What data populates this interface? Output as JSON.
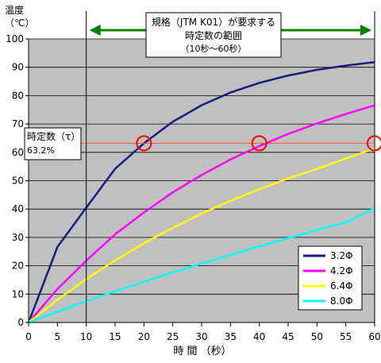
{
  "chart_data": {
    "type": "line",
    "title": "",
    "xlabel": "時 間 （秒）",
    "ylabel": "温度",
    "yunit": "（℃）",
    "xlim": [
      0,
      60
    ],
    "ylim": [
      0,
      100
    ],
    "xticks": [
      0,
      5,
      10,
      15,
      20,
      25,
      30,
      35,
      40,
      45,
      50,
      55,
      60
    ],
    "yticks": [
      0,
      10,
      20,
      30,
      40,
      50,
      60,
      70,
      80,
      90,
      100
    ],
    "grid": true,
    "legend_position": "bottom-right",
    "series": [
      {
        "name": "3.2Φ",
        "color": "#1a1a80",
        "x": [
          0,
          5,
          10,
          15,
          20,
          25,
          30,
          35,
          40,
          45,
          50,
          55,
          60
        ],
        "y": [
          0,
          26.6,
          40.5,
          54.2,
          63.2,
          70.8,
          76.6,
          81.1,
          84.5,
          87.1,
          89.1,
          90.6,
          91.8
        ]
      },
      {
        "name": "4.2Φ",
        "color": "#ff00ff",
        "x": [
          0,
          5,
          10,
          15,
          20,
          25,
          30,
          35,
          40,
          45,
          50,
          55,
          60
        ],
        "y": [
          0,
          11.8,
          21.8,
          31.1,
          38.8,
          45.9,
          52.0,
          57.5,
          62.2,
          66.5,
          70.2,
          73.5,
          76.6
        ]
      },
      {
        "name": "6.4Φ",
        "color": "#ffff00",
        "x": [
          0,
          5,
          10,
          15,
          20,
          25,
          30,
          35,
          40,
          45,
          50,
          55,
          60
        ],
        "y": [
          0,
          8.0,
          15.3,
          21.9,
          27.9,
          33.4,
          38.4,
          42.9,
          47.0,
          50.8,
          54.2,
          57.8,
          61.4
        ]
      },
      {
        "name": "8.0Φ",
        "color": "#00ffff",
        "x": [
          0,
          5,
          10,
          15,
          20,
          25,
          30,
          35,
          40,
          45,
          50,
          55,
          60
        ],
        "y": [
          0,
          3.8,
          7.5,
          11.0,
          14.3,
          17.6,
          20.8,
          23.8,
          26.9,
          29.7,
          32.6,
          35.3,
          40.3
        ]
      }
    ],
    "reference_line": {
      "y": 63.2,
      "color": "#ff6633"
    },
    "range_lines_x": [
      10,
      60
    ],
    "circle_markers": [
      {
        "x": 20,
        "y": 63.2
      },
      {
        "x": 40,
        "y": 63.2
      },
      {
        "x": 60,
        "y": 63.2
      }
    ],
    "annotations": {
      "spec_box": [
        "規格（JTM K01）が要求する",
        "時定数の範囲",
        "（10秒～60秒）"
      ],
      "time_constant_box": [
        "時定数（τ）",
        "63.2%"
      ]
    },
    "colors": {
      "plot_bg": "#c0c0c0",
      "arrow": "#008000",
      "circle": "#ff0000"
    }
  }
}
